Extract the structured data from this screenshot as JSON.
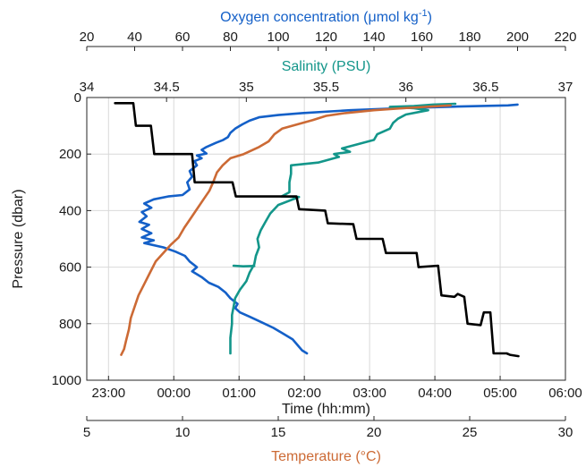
{
  "chart_data": {
    "type": "line",
    "grid": true,
    "colors": {
      "oxygen": "#1460c8",
      "salinity": "#13968a",
      "temperature": "#cc6a35",
      "time": "#000000",
      "text": "#1a1a1a"
    },
    "y_axis": {
      "label": "Pressure (dbar)",
      "range": [
        1000,
        0
      ],
      "ticks": [
        0,
        200,
        400,
        600,
        800,
        1000
      ]
    },
    "x_axes": [
      {
        "id": "oxygen",
        "position": "top-outer",
        "title_prefix": "Oxygen concentration (μmol kg",
        "title_sup": "-1",
        "title_suffix": ")",
        "range": [
          20,
          220
        ],
        "ticks": [
          20,
          40,
          60,
          80,
          100,
          120,
          140,
          160,
          180,
          200,
          220
        ]
      },
      {
        "id": "salinity",
        "position": "top-inner",
        "title": "Salinity (PSU)",
        "range": [
          34,
          37
        ],
        "ticks": [
          34,
          34.5,
          35,
          35.5,
          36,
          36.5,
          37
        ]
      },
      {
        "id": "time",
        "position": "bottom-inner",
        "title": "Time (hh:mm)",
        "range_hours": [
          -1.333,
          6
        ],
        "ticks": [
          -1,
          0,
          1,
          2,
          3,
          4,
          5,
          6
        ],
        "tick_labels": [
          "23:00",
          "00:00",
          "01:00",
          "02:00",
          "03:00",
          "04:00",
          "05:00",
          "06:00"
        ]
      },
      {
        "id": "temperature",
        "position": "bottom-outer",
        "title": "Temperature (°C)",
        "range": [
          5,
          30
        ],
        "ticks": [
          5,
          10,
          15,
          20,
          25,
          30
        ]
      }
    ],
    "series": [
      {
        "id": "oxygen",
        "axis": "oxygen",
        "points": [
          [
            200,
            25
          ],
          [
            196,
            28
          ],
          [
            175,
            32
          ],
          [
            150,
            38
          ],
          [
            130,
            45
          ],
          [
            110,
            55
          ],
          [
            100,
            62
          ],
          [
            92,
            70
          ],
          [
            88,
            82
          ],
          [
            85,
            95
          ],
          [
            82,
            110
          ],
          [
            80,
            125
          ],
          [
            79,
            140
          ],
          [
            77,
            150
          ],
          [
            74,
            160
          ],
          [
            70,
            175
          ],
          [
            68,
            185
          ],
          [
            70,
            198
          ],
          [
            66,
            205
          ],
          [
            68,
            215
          ],
          [
            65,
            225
          ],
          [
            66,
            240
          ],
          [
            63,
            260
          ],
          [
            64,
            280
          ],
          [
            62,
            300
          ],
          [
            63,
            325
          ],
          [
            60,
            345
          ],
          [
            54,
            350
          ],
          [
            48,
            360
          ],
          [
            44,
            375
          ],
          [
            47,
            390
          ],
          [
            43,
            405
          ],
          [
            45,
            420
          ],
          [
            42,
            440
          ],
          [
            46,
            450
          ],
          [
            43,
            465
          ],
          [
            47,
            480
          ],
          [
            43,
            495
          ],
          [
            48,
            505
          ],
          [
            44,
            515
          ],
          [
            52,
            530
          ],
          [
            57,
            545
          ],
          [
            61,
            560
          ],
          [
            63,
            580
          ],
          [
            66,
            600
          ],
          [
            64,
            615
          ],
          [
            68,
            635
          ],
          [
            71,
            655
          ],
          [
            75,
            670
          ],
          [
            78,
            690
          ],
          [
            80,
            710
          ],
          [
            83,
            730
          ],
          [
            82,
            745
          ],
          [
            84,
            760
          ],
          [
            88,
            775
          ],
          [
            93,
            795
          ],
          [
            98,
            815
          ],
          [
            102,
            835
          ],
          [
            106,
            855
          ],
          [
            108,
            875
          ],
          [
            110,
            895
          ],
          [
            112,
            905
          ]
        ]
      },
      {
        "id": "salinity",
        "axis": "salinity",
        "points": [
          [
            36.31,
            22
          ],
          [
            36.17,
            25
          ],
          [
            36.05,
            30
          ],
          [
            35.9,
            33
          ],
          [
            36.05,
            38
          ],
          [
            36.14,
            45
          ],
          [
            36.0,
            60
          ],
          [
            35.95,
            75
          ],
          [
            35.92,
            90
          ],
          [
            35.9,
            110
          ],
          [
            35.82,
            130
          ],
          [
            35.8,
            150
          ],
          [
            35.7,
            165
          ],
          [
            35.6,
            180
          ],
          [
            35.65,
            192
          ],
          [
            35.55,
            200
          ],
          [
            35.58,
            210
          ],
          [
            35.45,
            230
          ],
          [
            35.28,
            240
          ],
          [
            35.28,
            270
          ],
          [
            35.27,
            300
          ],
          [
            35.27,
            335
          ],
          [
            35.22,
            350
          ],
          [
            35.33,
            352
          ],
          [
            35.2,
            380
          ],
          [
            35.15,
            410
          ],
          [
            35.12,
            440
          ],
          [
            35.09,
            470
          ],
          [
            35.07,
            500
          ],
          [
            35.08,
            530
          ],
          [
            35.06,
            560
          ],
          [
            35.05,
            590
          ],
          [
            35.02,
            620
          ],
          [
            35.0,
            650
          ],
          [
            34.96,
            680
          ],
          [
            34.93,
            710
          ],
          [
            34.92,
            740
          ],
          [
            34.91,
            770
          ],
          [
            34.91,
            800
          ],
          [
            34.9,
            850
          ],
          [
            34.9,
            905
          ]
        ]
      },
      {
        "id": "salinity-lower-segment",
        "axis": "salinity",
        "points": [
          [
            34.92,
            595
          ],
          [
            34.98,
            597
          ],
          [
            35.05,
            596
          ]
        ]
      },
      {
        "id": "temperature",
        "axis": "temperature",
        "points": [
          [
            24.0,
            28
          ],
          [
            23.0,
            32
          ],
          [
            21.5,
            38
          ],
          [
            20.0,
            45
          ],
          [
            18.5,
            55
          ],
          [
            17.5,
            65
          ],
          [
            16.8,
            80
          ],
          [
            16.0,
            95
          ],
          [
            15.2,
            110
          ],
          [
            14.8,
            130
          ],
          [
            14.5,
            155
          ],
          [
            14.0,
            175
          ],
          [
            13.2,
            200
          ],
          [
            12.5,
            215
          ],
          [
            12.1,
            240
          ],
          [
            11.8,
            265
          ],
          [
            11.6,
            300
          ],
          [
            11.4,
            330
          ],
          [
            11.1,
            360
          ],
          [
            10.7,
            400
          ],
          [
            10.4,
            430
          ],
          [
            10.1,
            460
          ],
          [
            9.8,
            495
          ],
          [
            9.4,
            520
          ],
          [
            9.0,
            550
          ],
          [
            8.6,
            580
          ],
          [
            8.3,
            620
          ],
          [
            8.0,
            660
          ],
          [
            7.7,
            700
          ],
          [
            7.5,
            740
          ],
          [
            7.3,
            780
          ],
          [
            7.2,
            820
          ],
          [
            7.05,
            860
          ],
          [
            6.95,
            890
          ],
          [
            6.8,
            910
          ]
        ]
      },
      {
        "id": "time",
        "axis": "time",
        "points": [
          [
            -0.9,
            20
          ],
          [
            -0.62,
            20
          ],
          [
            -0.58,
            100
          ],
          [
            -0.35,
            100
          ],
          [
            -0.3,
            200
          ],
          [
            0.28,
            200
          ],
          [
            0.32,
            300
          ],
          [
            0.9,
            300
          ],
          [
            0.95,
            350
          ],
          [
            1.88,
            350
          ],
          [
            1.92,
            395
          ],
          [
            2.32,
            400
          ],
          [
            2.36,
            445
          ],
          [
            2.75,
            448
          ],
          [
            2.8,
            500
          ],
          [
            3.2,
            500
          ],
          [
            3.25,
            550
          ],
          [
            3.72,
            550
          ],
          [
            3.75,
            600
          ],
          [
            4.05,
            595
          ],
          [
            4.1,
            700
          ],
          [
            4.3,
            705
          ],
          [
            4.35,
            695
          ],
          [
            4.45,
            705
          ],
          [
            4.5,
            800
          ],
          [
            4.7,
            805
          ],
          [
            4.75,
            760
          ],
          [
            4.85,
            760
          ],
          [
            4.9,
            905
          ],
          [
            5.1,
            905
          ],
          [
            5.15,
            910
          ],
          [
            5.28,
            915
          ]
        ]
      }
    ]
  }
}
